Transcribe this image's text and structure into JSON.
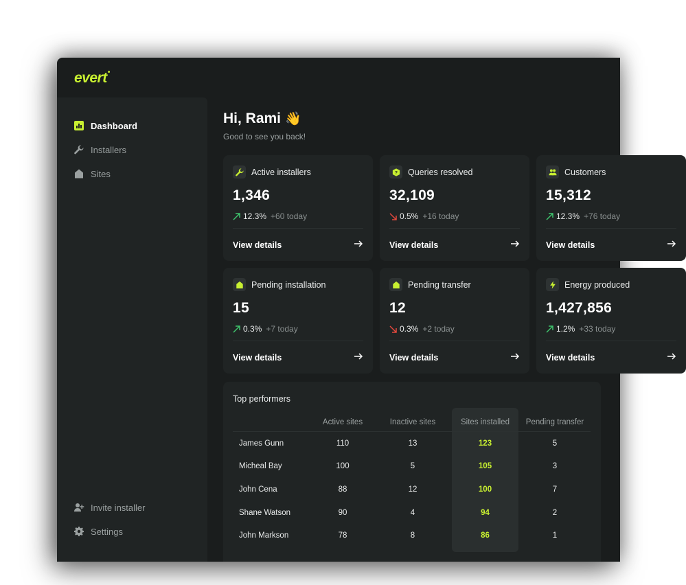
{
  "brand": {
    "logo": "evert",
    "accent": "#c8f031"
  },
  "nav": {
    "items": [
      {
        "label": "Dashboard",
        "icon": "bar-chart-icon",
        "active": true
      },
      {
        "label": "Installers",
        "icon": "wrench-icon",
        "active": false
      },
      {
        "label": "Sites",
        "icon": "house-icon",
        "active": false
      }
    ],
    "bottom": [
      {
        "label": "Invite installer",
        "icon": "user-plus-icon"
      },
      {
        "label": "Settings",
        "icon": "gear-icon"
      }
    ]
  },
  "greeting": {
    "title": "Hi, Rami",
    "emoji": "👋",
    "subtitle": "Good to see you back!"
  },
  "cards": [
    {
      "title": "Active installers",
      "icon": "wrench-icon",
      "value": "1,346",
      "trend": "up",
      "pct": "12.3%",
      "today": "+60 today",
      "link": "View details"
    },
    {
      "title": "Queries resolved",
      "icon": "question-icon",
      "value": "32,109",
      "trend": "down",
      "pct": "0.5%",
      "today": "+16 today",
      "link": "View details"
    },
    {
      "title": "Customers",
      "icon": "users-icon",
      "value": "15,312",
      "trend": "up",
      "pct": "12.3%",
      "today": "+76 today",
      "link": "View details"
    },
    {
      "title": "Pending installation",
      "icon": "house-icon",
      "value": "15",
      "trend": "up",
      "pct": "0.3%",
      "today": "+7 today",
      "link": "View details"
    },
    {
      "title": "Pending transfer",
      "icon": "house-icon",
      "value": "12",
      "trend": "down",
      "pct": "0.3%",
      "today": "+2 today",
      "link": "View details"
    },
    {
      "title": "Energy produced",
      "icon": "bolt-icon",
      "value": "1,427,856",
      "trend": "up",
      "pct": "1.2%",
      "today": "+33 today",
      "link": "View details"
    }
  ],
  "performers": {
    "title": "Top performers",
    "columns": [
      "",
      "Active sites",
      "Inactive sites",
      "Sites installed",
      "Pending transfer"
    ],
    "rows": [
      [
        "James Gunn",
        "110",
        "13",
        "123",
        "5"
      ],
      [
        "Micheal Bay",
        "100",
        "5",
        "105",
        "3"
      ],
      [
        "John Cena",
        "88",
        "12",
        "100",
        "7"
      ],
      [
        "Shane Watson",
        "90",
        "4",
        "94",
        "2"
      ],
      [
        "John Markson",
        "78",
        "8",
        "86",
        "1"
      ]
    ]
  }
}
